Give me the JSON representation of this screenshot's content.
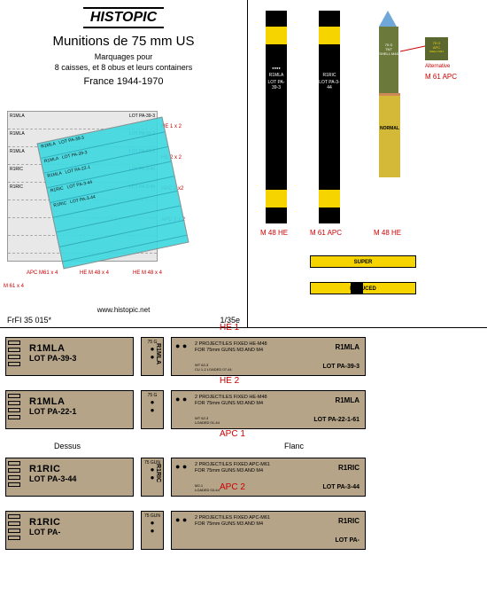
{
  "header": {
    "logo": "HISTOPIC",
    "title": "Munitions de 75 mm US",
    "subtitle_line1": "Marquages pour",
    "subtitle_line2": "8 caisses, et 8 obus et leurs containers",
    "france": "France 1944-1970",
    "ref": "FrFI 35 015*",
    "scale": "1/35e",
    "url": "www.histopic.net"
  },
  "decal_sheet": {
    "bg_color": "#e8e8e8",
    "cyan_color": "#40d8e0",
    "right_labels": [
      "HE 1 x 2",
      "HE 2 x 2",
      "APC 1 x2",
      "APC 2 x 2"
    ],
    "bottom_labels": [
      "APC M61 x 4",
      "HE M 48 x 4",
      "HE M 48 x 4"
    ],
    "left_label": "M 61 x 4",
    "row_text": "R1MLA LOT PA-39-3"
  },
  "shells": {
    "s1": {
      "label": "M 48 HE",
      "marking": "R1MLA",
      "lot": "LOT PA-39-3",
      "body_color": "#000000",
      "band_color": "#f5d400"
    },
    "s2": {
      "label": "M 61 APC",
      "marking": "R1RIC",
      "lot": "LOT PA-3-44",
      "body_color": "#000000",
      "band_color": "#f5d400"
    },
    "s3": {
      "label": "M 48 HE",
      "tip_color": "#6fa8d8",
      "upper_color": "#6b7a3a",
      "lower_color": "#d4b838",
      "upper_text1": "75 G",
      "upper_text2": "TNT",
      "upper_text3": "SHELL M48",
      "normal": "NORMAL"
    },
    "alt": {
      "line1": "75 G",
      "line2": "APC",
      "line3": "SHELL M61",
      "label": "Alternative",
      "code": "M 61 APC",
      "bg": "#5a6830"
    },
    "cartridges": {
      "super": "SUPER",
      "reduced": "REDUCED",
      "color": "#f5d400"
    }
  },
  "crates": {
    "bg_color": "#b5a488",
    "rows": [
      {
        "label": "HE 1",
        "top_l1": "R1MLA",
        "top_l2": "LOT PA-39-3",
        "end_code": "75 G",
        "end_vert": "R1MLA",
        "side_main1": "2 PROJECTILES  FIXED  HE-M48",
        "side_main2": "FOR 75mm GUNS M3 AND M4",
        "side_lot1": "R1MLA",
        "side_lot2": "LOT PA-39-3",
        "side_small1": "WT  62-3",
        "side_small2": "CU  1-2  LOADED 07-44"
      },
      {
        "label": "HE 2",
        "top_l1": "R1MLA",
        "top_l2": "LOT PA-22-1",
        "end_code": "75 G",
        "end_vert": "",
        "side_main1": "2 PROJECTILES  FIXED  HE-M48",
        "side_main2": "FOR 75mm GUNS M3 AND M4",
        "side_lot1": "R1MLA",
        "side_lot2": "LOT PA-22-1-61",
        "side_small1": "WT  62-3",
        "side_small2": "LOADED  01-44"
      },
      {
        "label": "APC 1",
        "top_l1": "R1RIC",
        "top_l2": "LOT PA-3-44",
        "end_code": "75 GUN",
        "end_vert": "R1RIC",
        "side_main1": "2 PROJECTILES  FIXED  APC-M61",
        "side_main2": "FOR 75mm GUNS M3 AND M4",
        "side_lot1": "R1RIC",
        "side_lot2": "LOT PA-3-44",
        "side_small1": "M2-1",
        "side_small2": "LOADED  03-44"
      },
      {
        "label": "APC 2",
        "top_l1": "R1RIC",
        "top_l2": "LOT PA-",
        "end_code": "75 GUN",
        "end_vert": "",
        "side_main1": "2 PROJECTILES  FIXED  APC-M61",
        "side_main2": "FOR 75mm GUNS M3 AND M4",
        "side_lot1": "R1RIC",
        "side_lot2": "LOT PA-",
        "side_small1": "",
        "side_small2": ""
      }
    ],
    "dessus": "Dessus",
    "flanc": "Flanc"
  }
}
